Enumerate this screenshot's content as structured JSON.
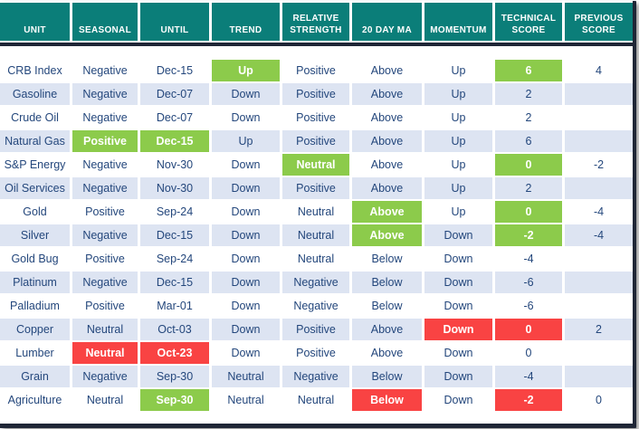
{
  "colors": {
    "header_bg": "#0b7e79",
    "header_text": "#ffffff",
    "frame": "#1f2636",
    "text": "#24477c",
    "row_bg": "#ffffff",
    "row_alt_bg": "#dde4f2",
    "green": "#8ccb4b",
    "red": "#f94343"
  },
  "table": {
    "columns": [
      {
        "key": "unit",
        "label": "UNIT"
      },
      {
        "key": "seasonal",
        "label": "SEASONAL"
      },
      {
        "key": "until",
        "label": "UNTIL"
      },
      {
        "key": "trend",
        "label": "TREND"
      },
      {
        "key": "relative-strength",
        "label": "RELATIVE STRENGTH"
      },
      {
        "key": "20-day-ma",
        "label": "20 DAY MA"
      },
      {
        "key": "momentum",
        "label": "MOMENTUM"
      },
      {
        "key": "technical-score",
        "label": "TECHNICAL SCORE"
      },
      {
        "key": "previous-score",
        "label": "PREVIOUS SCORE"
      }
    ],
    "rows": [
      {
        "cells": [
          {
            "t": "CRB Index"
          },
          {
            "t": "Negative"
          },
          {
            "t": "Dec-15"
          },
          {
            "t": "Up",
            "hl": "green"
          },
          {
            "t": "Positive"
          },
          {
            "t": "Above"
          },
          {
            "t": "Up"
          },
          {
            "t": "6",
            "hl": "green"
          },
          {
            "t": "4"
          }
        ]
      },
      {
        "cells": [
          {
            "t": "Gasoline"
          },
          {
            "t": "Negative"
          },
          {
            "t": "Dec-07"
          },
          {
            "t": "Down"
          },
          {
            "t": "Positive"
          },
          {
            "t": "Above"
          },
          {
            "t": "Up"
          },
          {
            "t": "2"
          },
          {
            "t": ""
          }
        ]
      },
      {
        "cells": [
          {
            "t": "Crude Oil"
          },
          {
            "t": "Negative"
          },
          {
            "t": "Dec-07"
          },
          {
            "t": "Down"
          },
          {
            "t": "Positive"
          },
          {
            "t": "Above"
          },
          {
            "t": "Up"
          },
          {
            "t": "2"
          },
          {
            "t": ""
          }
        ]
      },
      {
        "cells": [
          {
            "t": "Natural Gas"
          },
          {
            "t": "Positive",
            "hl": "green"
          },
          {
            "t": "Dec-15",
            "hl": "green"
          },
          {
            "t": "Up"
          },
          {
            "t": "Positive"
          },
          {
            "t": "Above"
          },
          {
            "t": "Up"
          },
          {
            "t": "6"
          },
          {
            "t": ""
          }
        ]
      },
      {
        "cells": [
          {
            "t": "S&P Energy"
          },
          {
            "t": "Negative"
          },
          {
            "t": "Nov-30"
          },
          {
            "t": "Down"
          },
          {
            "t": "Neutral",
            "hl": "green"
          },
          {
            "t": "Above"
          },
          {
            "t": "Up"
          },
          {
            "t": "0",
            "hl": "green"
          },
          {
            "t": "-2"
          }
        ]
      },
      {
        "cells": [
          {
            "t": "Oil Services"
          },
          {
            "t": "Negative"
          },
          {
            "t": "Nov-30"
          },
          {
            "t": "Down"
          },
          {
            "t": "Positive"
          },
          {
            "t": "Above"
          },
          {
            "t": "Up"
          },
          {
            "t": "2"
          },
          {
            "t": ""
          }
        ]
      },
      {
        "cells": [
          {
            "t": "Gold"
          },
          {
            "t": "Positive"
          },
          {
            "t": "Sep-24"
          },
          {
            "t": "Down"
          },
          {
            "t": "Neutral"
          },
          {
            "t": "Above",
            "hl": "green"
          },
          {
            "t": "Up"
          },
          {
            "t": "0",
            "hl": "green"
          },
          {
            "t": "-4"
          }
        ]
      },
      {
        "cells": [
          {
            "t": "Silver"
          },
          {
            "t": "Negative"
          },
          {
            "t": "Dec-15"
          },
          {
            "t": "Down"
          },
          {
            "t": "Neutral"
          },
          {
            "t": "Above",
            "hl": "green"
          },
          {
            "t": "Down"
          },
          {
            "t": "-2",
            "hl": "green"
          },
          {
            "t": "-4"
          }
        ]
      },
      {
        "cells": [
          {
            "t": "Gold Bug"
          },
          {
            "t": "Positive"
          },
          {
            "t": "Sep-24"
          },
          {
            "t": "Down"
          },
          {
            "t": "Neutral"
          },
          {
            "t": "Below"
          },
          {
            "t": "Down"
          },
          {
            "t": "-4"
          },
          {
            "t": ""
          }
        ]
      },
      {
        "cells": [
          {
            "t": "Platinum"
          },
          {
            "t": "Negative"
          },
          {
            "t": "Dec-15"
          },
          {
            "t": "Down"
          },
          {
            "t": "Negative"
          },
          {
            "t": "Below"
          },
          {
            "t": "Down"
          },
          {
            "t": "-6"
          },
          {
            "t": ""
          }
        ]
      },
      {
        "cells": [
          {
            "t": "Palladium"
          },
          {
            "t": "Positive"
          },
          {
            "t": "Mar-01"
          },
          {
            "t": "Down"
          },
          {
            "t": "Negative"
          },
          {
            "t": "Below"
          },
          {
            "t": "Down"
          },
          {
            "t": "-6"
          },
          {
            "t": ""
          }
        ]
      },
      {
        "cells": [
          {
            "t": "Copper"
          },
          {
            "t": "Neutral"
          },
          {
            "t": "Oct-03"
          },
          {
            "t": "Down"
          },
          {
            "t": "Positive"
          },
          {
            "t": "Above"
          },
          {
            "t": "Down",
            "hl": "red"
          },
          {
            "t": "0",
            "hl": "red"
          },
          {
            "t": "2"
          }
        ]
      },
      {
        "cells": [
          {
            "t": "Lumber"
          },
          {
            "t": "Neutral",
            "hl": "red"
          },
          {
            "t": "Oct-23",
            "hl": "red"
          },
          {
            "t": "Down"
          },
          {
            "t": "Positive"
          },
          {
            "t": "Above"
          },
          {
            "t": "Down"
          },
          {
            "t": "0"
          },
          {
            "t": ""
          }
        ]
      },
      {
        "cells": [
          {
            "t": "Grain"
          },
          {
            "t": "Negative"
          },
          {
            "t": "Sep-30"
          },
          {
            "t": "Neutral"
          },
          {
            "t": "Negative"
          },
          {
            "t": "Below"
          },
          {
            "t": "Down"
          },
          {
            "t": "-4"
          },
          {
            "t": ""
          }
        ]
      },
      {
        "cells": [
          {
            "t": "Agriculture"
          },
          {
            "t": "Neutral"
          },
          {
            "t": "Sep-30",
            "hl": "green"
          },
          {
            "t": "Neutral"
          },
          {
            "t": "Neutral"
          },
          {
            "t": "Below",
            "hl": "red"
          },
          {
            "t": "Down"
          },
          {
            "t": "-2",
            "hl": "red"
          },
          {
            "t": "0"
          }
        ]
      }
    ]
  }
}
